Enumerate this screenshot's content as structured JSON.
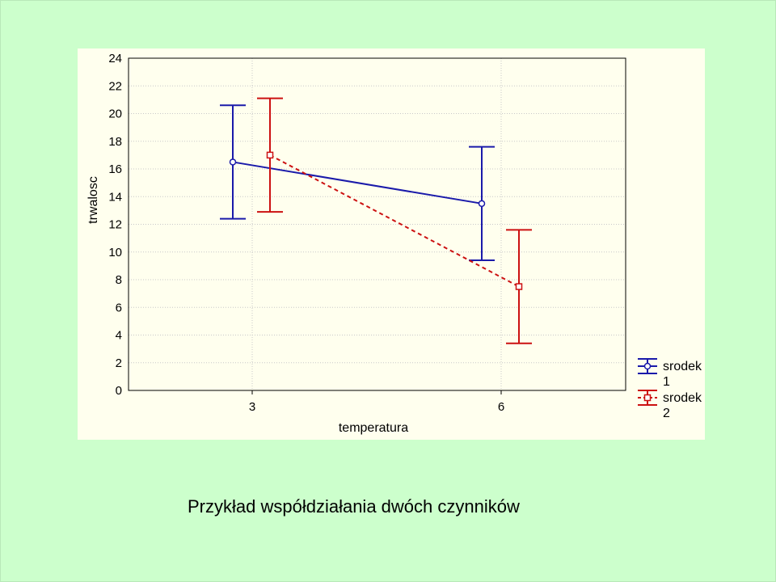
{
  "slide": {
    "caption": "Przykład współdziałania dwóch czynników"
  },
  "colors": {
    "background": "#ccffcc",
    "plot_background": "#ffffee",
    "series_1": "#1a1aaa",
    "series_2": "#cc1111",
    "grid": "#c8c8c8"
  },
  "chart_data": {
    "type": "line",
    "title": "",
    "xlabel": "temperatura",
    "ylabel": "trwalosc",
    "categories": [
      "3",
      "6"
    ],
    "ylim": [
      0,
      24
    ],
    "yticks": [
      0,
      2,
      4,
      6,
      8,
      10,
      12,
      14,
      16,
      18,
      20,
      22,
      24
    ],
    "grid": true,
    "legend_position": "bottom-right",
    "series": [
      {
        "name": "srodek 1",
        "name_lines": [
          "srodek",
          "1"
        ],
        "marker": "circle",
        "line_style": "solid",
        "values": [
          16.5,
          13.5
        ],
        "lower": [
          12.4,
          9.4
        ],
        "upper": [
          20.6,
          17.6
        ]
      },
      {
        "name": "srodek 2",
        "name_lines": [
          "srodek",
          "2"
        ],
        "marker": "square",
        "line_style": "dashed",
        "values": [
          17.0,
          7.5
        ],
        "lower": [
          12.9,
          3.4
        ],
        "upper": [
          21.1,
          11.6
        ]
      }
    ]
  }
}
